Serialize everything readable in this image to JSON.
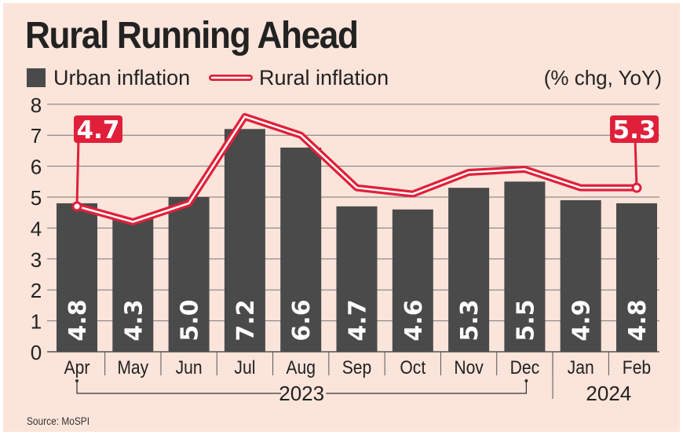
{
  "chart_data": {
    "type": "bar",
    "title": "Rural Running Ahead",
    "unit_note": "(% chg, YoY)",
    "categories": [
      "Apr",
      "May",
      "Jun",
      "Jul",
      "Aug",
      "Sep",
      "Oct",
      "Nov",
      "Dec",
      "Jan",
      "Feb"
    ],
    "year_groups": [
      {
        "label": "2023",
        "from": "Apr",
        "to": "Dec"
      },
      {
        "label": "2024",
        "from": "Jan",
        "to": "Feb"
      }
    ],
    "series": [
      {
        "name": "Urban inflation",
        "kind": "bar",
        "color": "#4a4a4a",
        "values": [
          4.8,
          4.3,
          5.0,
          7.2,
          6.6,
          4.7,
          4.6,
          5.3,
          5.5,
          4.9,
          4.8
        ],
        "value_labels": [
          "4.8",
          "4.3",
          "5.0",
          "7.2",
          "6.6",
          "4.7",
          "4.6",
          "5.3",
          "5.5",
          "4.9",
          "4.8"
        ]
      },
      {
        "name": "Rural inflation",
        "kind": "line",
        "color": "#e0203a",
        "values": [
          4.7,
          4.2,
          4.8,
          7.6,
          7.0,
          5.3,
          5.1,
          5.8,
          5.9,
          5.3,
          5.3
        ],
        "callouts": [
          {
            "category": "Apr",
            "label": "4.7"
          },
          {
            "category": "Feb",
            "label": "5.3"
          }
        ]
      }
    ],
    "ylim": [
      0,
      8
    ],
    "yticks": [
      0,
      1,
      2,
      3,
      4,
      5,
      6,
      7,
      8
    ],
    "grid": true,
    "legend": "top-left",
    "source": "Source: MoSPI"
  }
}
